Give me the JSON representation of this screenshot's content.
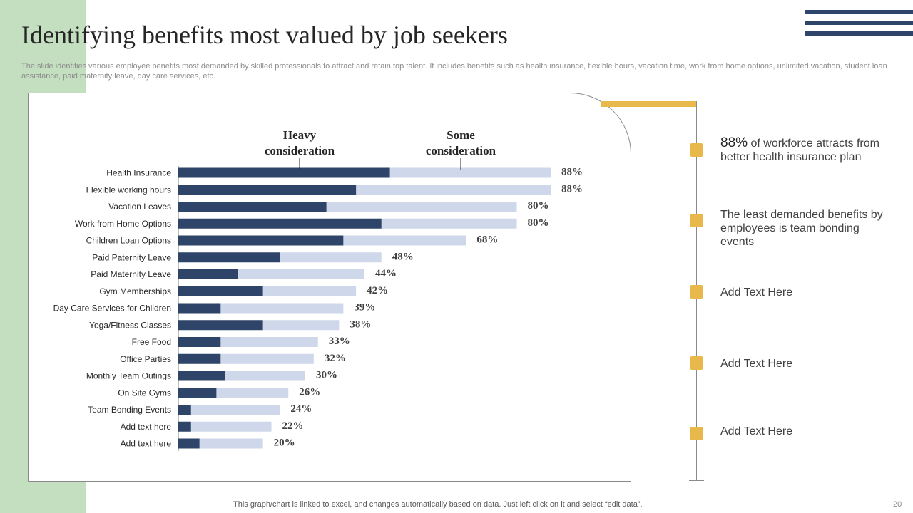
{
  "slide": {
    "title": "Identifying benefits most valued by job seekers",
    "subtitle": "The slide identifies various employee benefits most demanded by skilled professionals to attract and retain top talent. It includes benefits such as health insurance, flexible hours, vacation time, work from home options, unlimited vacation, student loan assistance, paid maternity leave, day care services, etc.",
    "footer": "This graph/chart is linked to excel,  and changes automatically based on data. Just left click on it and select “edit data”.",
    "page_number": "20"
  },
  "colors": {
    "heavy": "#2e4468",
    "some": "#cfd8ea",
    "accent": "#e8b84b",
    "sidebar": "#c3dfbf"
  },
  "notes": [
    {
      "emphasis": "88%",
      "text": " of workforce attracts from better health insurance plan"
    },
    {
      "text": "The least demanded benefits by employees is team bonding events"
    },
    {
      "text": "Add Text Here"
    },
    {
      "text": "Add Text Here"
    },
    {
      "text": "Add Text Here"
    }
  ],
  "chart_data": {
    "type": "bar",
    "orientation": "horizontal",
    "stacked": true,
    "title": "",
    "xlabel": "",
    "ylabel": "",
    "xlim": [
      0,
      88
    ],
    "series_labels": [
      [
        "Heavy",
        "consideration"
      ],
      [
        "Some",
        "consideration"
      ]
    ],
    "categories": [
      "Health Insurance",
      "Flexible working hours",
      "Vacation Leaves",
      "Work from Home Options",
      "Children Loan Options",
      "Paid Paternity Leave",
      "Paid Maternity Leave",
      "Gym Memberships",
      "Day Care Services for Children",
      "Yoga/Fitness Classes",
      "Free Food",
      "Office Parties",
      "Monthly Team Outings",
      "On Site Gyms",
      "Team Bonding Events",
      "Add text here",
      "Add text here"
    ],
    "series": [
      {
        "name": "Heavy consideration",
        "values": [
          50,
          42,
          35,
          48,
          39,
          24,
          14,
          20,
          10,
          20,
          10,
          10,
          11,
          9,
          3,
          3,
          5
        ]
      },
      {
        "name": "Some consideration",
        "values": [
          38,
          46,
          45,
          32,
          29,
          24,
          30,
          22,
          29,
          18,
          23,
          22,
          19,
          17,
          21,
          19,
          15
        ]
      }
    ],
    "totals": [
      88,
      88,
      80,
      80,
      68,
      48,
      44,
      42,
      39,
      38,
      33,
      32,
      30,
      26,
      24,
      22,
      20
    ],
    "total_labels": [
      "88%",
      "88%",
      "80%",
      "80%",
      "68%",
      "48%",
      "44%",
      "42%",
      "39%",
      "38%",
      "33%",
      "32%",
      "30%",
      "26%",
      "24%",
      "22%",
      "20%"
    ]
  }
}
